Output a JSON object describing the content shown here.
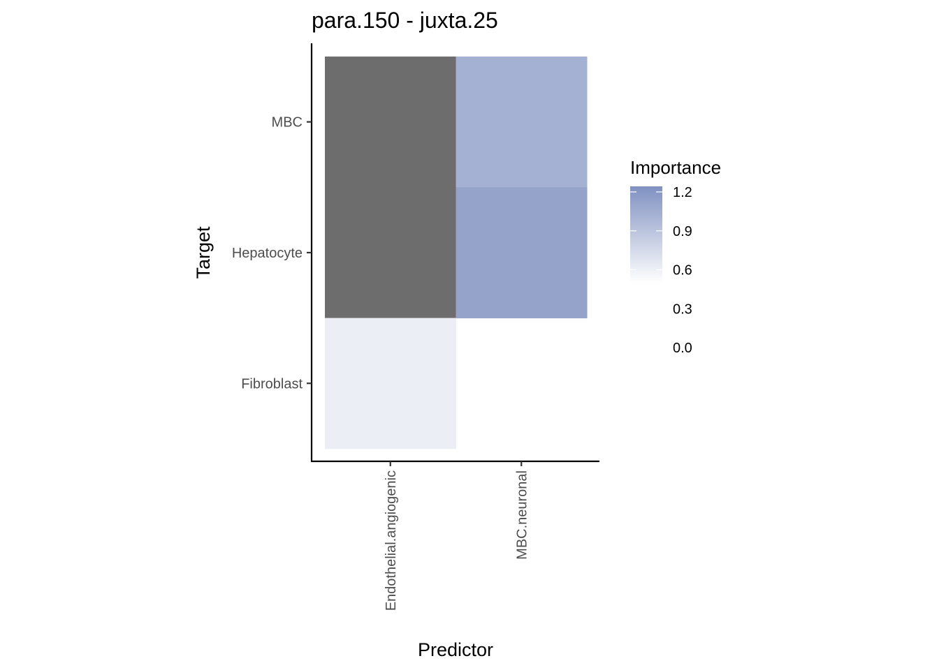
{
  "chart_data": {
    "type": "heatmap",
    "title": "para.150 - juxta.25",
    "xlabel": "Predictor",
    "ylabel": "Target",
    "x_categories": [
      "Endothelial.angiogenic",
      "MBC.neuronal"
    ],
    "y_categories": [
      "MBC",
      "Hepatocyte",
      "Fibroblast"
    ],
    "cells": [
      {
        "x": "Endothelial.angiogenic",
        "y": "MBC",
        "value": null
      },
      {
        "x": "MBC.neuronal",
        "y": "MBC",
        "value": 0.85
      },
      {
        "x": "Endothelial.angiogenic",
        "y": "Hepatocyte",
        "value": null
      },
      {
        "x": "MBC.neuronal",
        "y": "Hepatocyte",
        "value": 1.0
      },
      {
        "x": "Endothelial.angiogenic",
        "y": "Fibroblast",
        "value": 0.18
      }
    ],
    "na_color": "#6d6d6d",
    "legend": {
      "title": "Importance",
      "breaks": [
        "1.2",
        "0.9",
        "0.6",
        "0.3",
        "0.0"
      ],
      "break_values": [
        1.2,
        0.9,
        0.6,
        0.3,
        0.0
      ],
      "low_color": "#ffffff",
      "high_color": "#7b8cbe",
      "limits": [
        0.0,
        1.25
      ],
      "position": "right"
    },
    "grid": false
  }
}
